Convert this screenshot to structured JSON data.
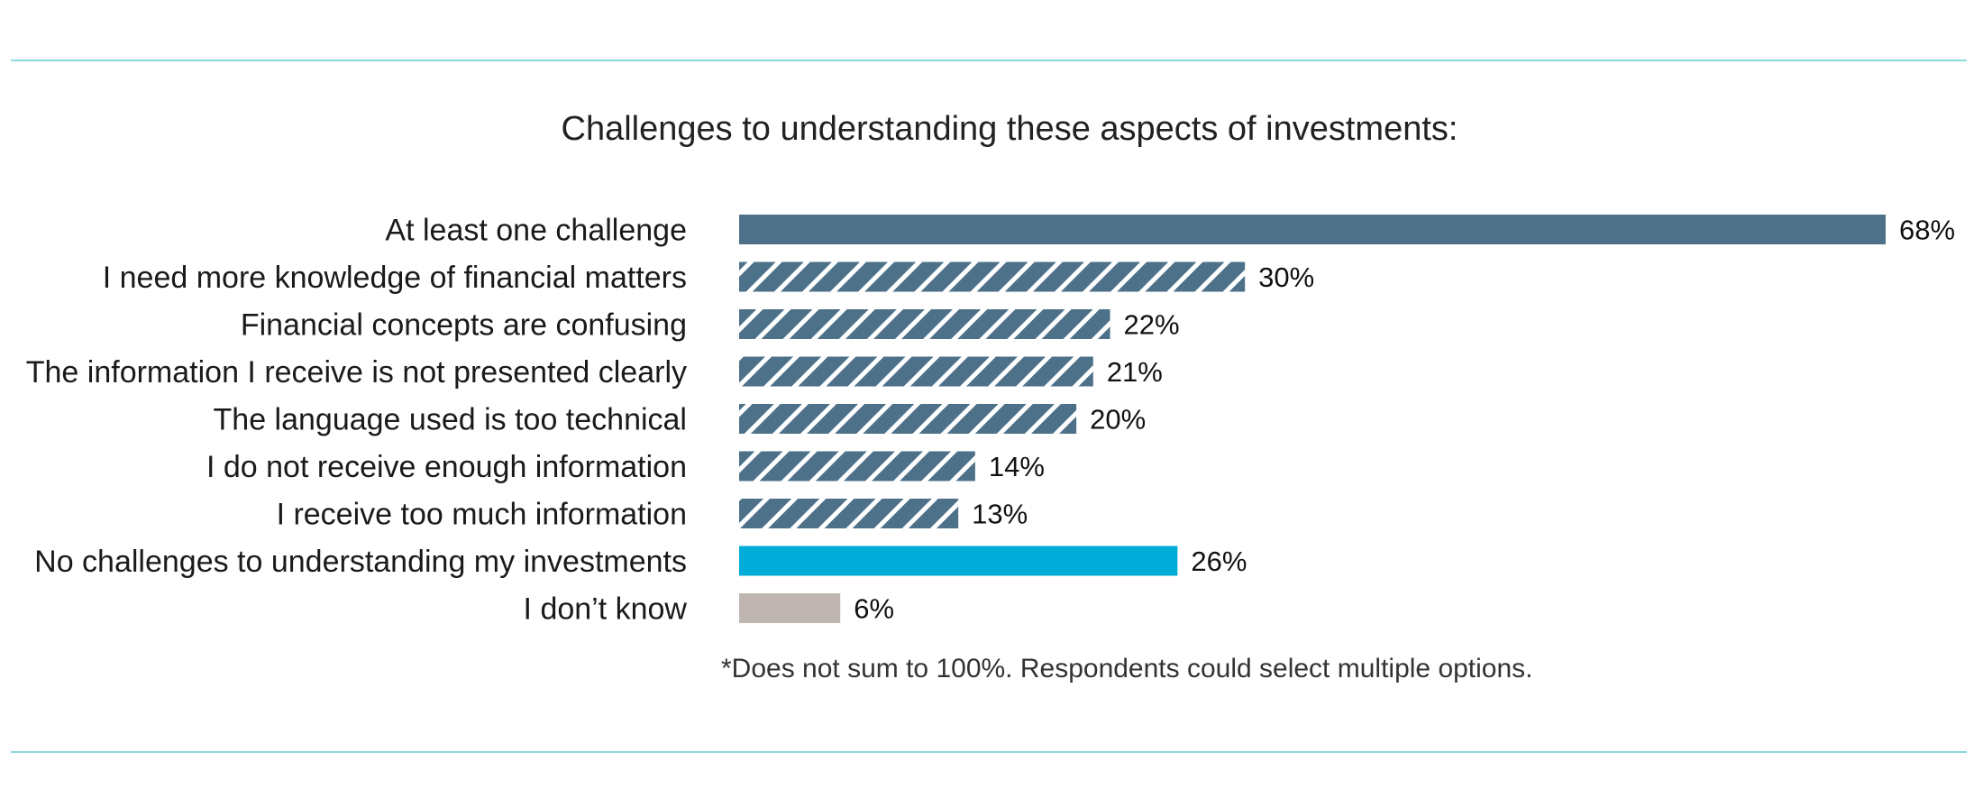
{
  "chart_data": {
    "type": "bar",
    "orientation": "horizontal",
    "title": "Challenges to understanding these aspects of investments:",
    "footnote": "*Does not sum to 100%. Respondents could select multiple options.",
    "unit": "%",
    "categories": [
      "At least one challenge",
      "I need more knowledge of financial matters",
      "Financial concepts are confusing",
      "The information I receive is not presented clearly",
      "The language used is too technical",
      "I do not receive enough information",
      "I receive too much information",
      "No challenges to understanding my investments",
      "I don’t know"
    ],
    "values": [
      68,
      30,
      22,
      21,
      20,
      14,
      13,
      26,
      6
    ],
    "value_labels": [
      "68%",
      "30%",
      "22%",
      "21%",
      "20%",
      "14%",
      "13%",
      "26%",
      "6%"
    ],
    "bar_styles": [
      "solid",
      "hatched",
      "hatched",
      "hatched",
      "hatched",
      "hatched",
      "hatched",
      "solid",
      "solid"
    ],
    "bar_colors": [
      "#4d7189",
      "#4d7189",
      "#4d7189",
      "#4d7189",
      "#4d7189",
      "#4d7189",
      "#4d7189",
      "#00acd8",
      "#bfb6b1"
    ],
    "xlim": [
      0,
      68
    ],
    "grid": false,
    "legend": "none"
  },
  "colors": {
    "rule": "#8ad9dc",
    "primary_bar": "#4d7189",
    "highlight_bar": "#00acd8",
    "neutral_bar": "#bfb6b1"
  }
}
